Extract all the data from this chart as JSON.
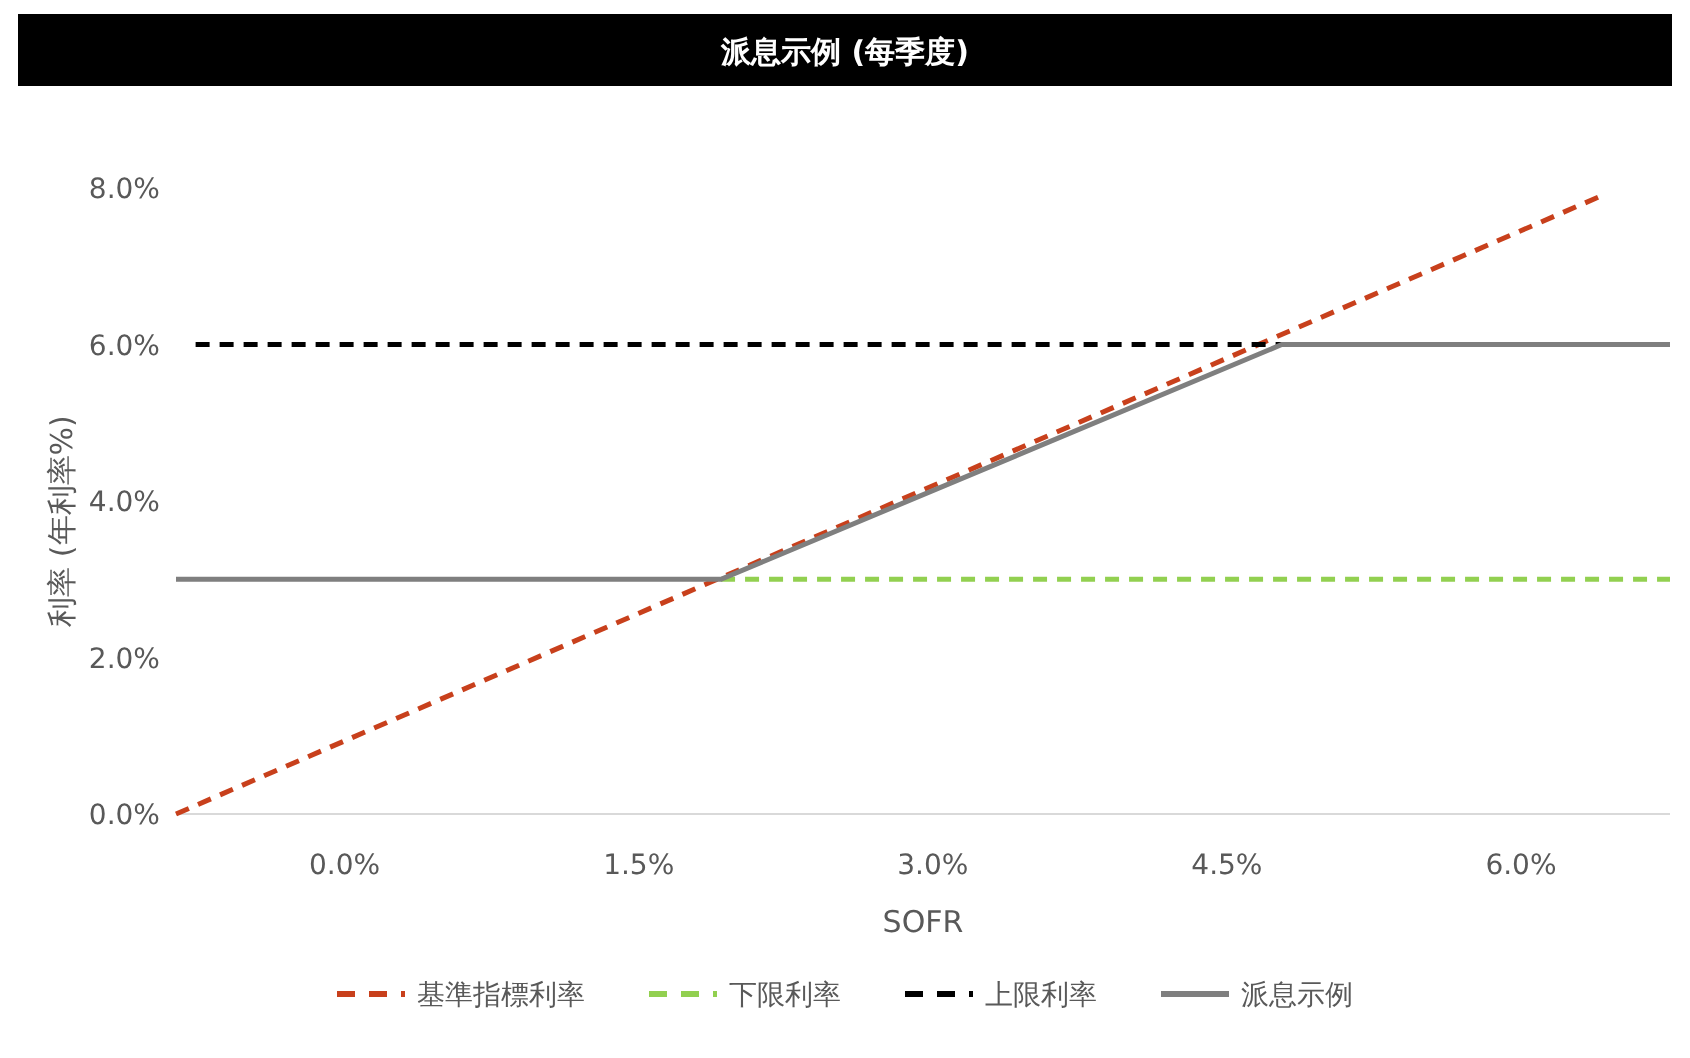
{
  "chart_data": {
    "type": "line",
    "title": "派息示例 (每季度)",
    "xlabel": "SOFR",
    "ylabel": "利率 (年利率%)",
    "xlim": [
      -0.86,
      6.76
    ],
    "ylim": [
      0,
      8
    ],
    "xticks": [
      {
        "value": 0,
        "label": "0.0%"
      },
      {
        "value": 1.5,
        "label": "1.5%"
      },
      {
        "value": 3,
        "label": "3.0%"
      },
      {
        "value": 4.5,
        "label": "4.5%"
      },
      {
        "value": 6,
        "label": "6.0%"
      }
    ],
    "yticks": [
      {
        "value": 0,
        "label": "0.0%"
      },
      {
        "value": 2,
        "label": "2.0%"
      },
      {
        "value": 4,
        "label": "4.0%"
      },
      {
        "value": 6,
        "label": "6.0%"
      },
      {
        "value": 8,
        "label": "8.0%"
      }
    ],
    "legend": "bottom",
    "series": [
      {
        "name": "基準指標利率",
        "color": "#c8401c",
        "line_style": "dashed",
        "x": [
          -0.86,
          6.41
        ],
        "values": [
          0,
          7.9
        ]
      },
      {
        "name": "下限利率",
        "color": "#92d050",
        "line_style": "dashed",
        "x": [
          1.92,
          6.76
        ],
        "values": [
          3,
          3
        ]
      },
      {
        "name": "上限利率",
        "color": "#000000",
        "line_style": "dashed",
        "x": [
          -0.76,
          4.78
        ],
        "values": [
          6,
          6
        ]
      },
      {
        "name": "派息示例",
        "color": "#7f7f7f",
        "line_style": "solid",
        "x": [
          -0.86,
          1.92,
          4.78,
          6.76
        ],
        "values": [
          3,
          3,
          6,
          6
        ]
      }
    ]
  }
}
